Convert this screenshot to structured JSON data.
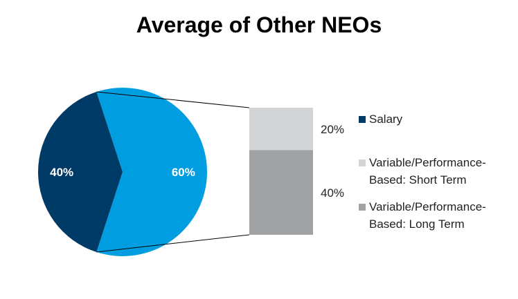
{
  "chart_data": {
    "type": "pie",
    "title": "Average of Other NEOs",
    "pie": {
      "slices": [
        {
          "name": "Variable/Performance-Based",
          "value": 60,
          "label": "60%",
          "color": "#009ee0"
        },
        {
          "name": "Salary",
          "value": 40,
          "label": "40%",
          "color": "#003a66"
        }
      ]
    },
    "breakdown_bar": {
      "of_slice": "Variable/Performance-Based",
      "segments": [
        {
          "name": "Variable/Performance-Based: Short Term",
          "value": 20,
          "label": "20%",
          "color": "#d2d4d6"
        },
        {
          "name": "Variable/Performance-Based: Long Term",
          "value": 40,
          "label": "40%",
          "color": "#a0a2a3"
        }
      ]
    },
    "legend": [
      {
        "label": "Salary",
        "color": "#003a66"
      },
      {
        "label": "Variable/Performance- Based: Short Term",
        "line1": "Variable/Performance-",
        "line2": "Based: Short Term",
        "color": "#d2d4d6"
      },
      {
        "label": "Variable/Performance- Based: Long Term",
        "line1": "Variable/Performance-",
        "line2": "Based: Long Term",
        "color": "#a0a2a3"
      }
    ],
    "legend_position": "right"
  }
}
